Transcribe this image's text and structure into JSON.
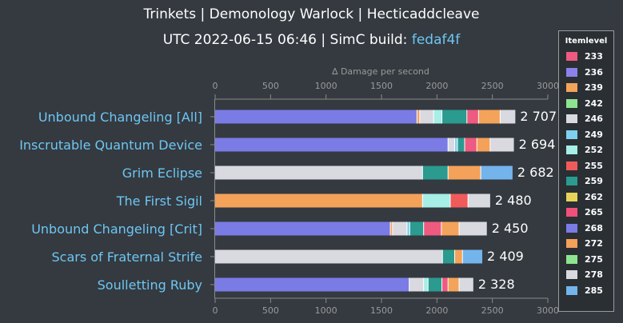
{
  "header": {
    "title": "Trinkets | Demonology Warlock | Hecticaddcleave",
    "subtitle_prefix": "UTC 2022-06-15 06:46 | SimC build: ",
    "build": "fedaf4f"
  },
  "chart_data": {
    "type": "bar",
    "orientation": "horizontal",
    "stacked": true,
    "xlabel": "∆ Damage per second",
    "xlim": [
      0,
      3000
    ],
    "xticks": [
      0,
      500,
      1000,
      1500,
      2000,
      2500,
      3000
    ],
    "grid": false,
    "legend_position": "right",
    "legend_title": "Itemlevel",
    "series_colors": {
      "233": "#ee5a80",
      "236": "#8a82e8",
      "239": "#f4a35a",
      "242": "#8ee58f",
      "246": "#d9d9e0",
      "249": "#7fd0f0",
      "252": "#a6eee6",
      "255": "#ef5b5b",
      "259": "#2b9a8f",
      "262": "#e8d35a",
      "265": "#f0507a",
      "268": "#7b7be6",
      "272": "#f4a15a",
      "275": "#8ee58f",
      "278": "#d9d9df",
      "285": "#74b4ec"
    },
    "categories": [
      "Unbound Changeling [All]",
      "Inscrutable Quantum Device",
      "Grim Eclipse",
      "The First Sigil",
      "Unbound Changeling [Crit]",
      "Scars of Fraternal Strife",
      "Soulletting Ruby"
    ],
    "totals": [
      "2 707",
      "2 694",
      "2 682",
      "2 480",
      "2 450",
      "2 409",
      "2 328"
    ],
    "bars": [
      [
        [
          "268",
          1820
        ],
        [
          "272",
          1845
        ],
        [
          "278",
          1970
        ],
        [
          "252",
          2045
        ],
        [
          "259",
          2270
        ],
        [
          "233",
          2375
        ],
        [
          "239",
          2570
        ],
        [
          "246",
          2707
        ]
      ],
      [
        [
          "268",
          2100
        ],
        [
          "246",
          2160
        ],
        [
          "249",
          2185
        ],
        [
          "259",
          2250
        ],
        [
          "233",
          2360
        ],
        [
          "272",
          2480
        ],
        [
          "278",
          2694
        ]
      ],
      [
        [
          "246",
          1870
        ],
        [
          "259",
          2100
        ],
        [
          "272",
          2395
        ],
        [
          "285",
          2682
        ]
      ],
      [
        [
          "272",
          1870
        ],
        [
          "252",
          2120
        ],
        [
          "255",
          2280
        ],
        [
          "246",
          2480
        ]
      ],
      [
        [
          "268",
          1580
        ],
        [
          "272",
          1600
        ],
        [
          "278",
          1730
        ],
        [
          "249",
          1755
        ],
        [
          "259",
          1880
        ],
        [
          "233",
          2040
        ],
        [
          "239",
          2200
        ],
        [
          "246",
          2450
        ]
      ],
      [
        [
          "246",
          2050
        ],
        [
          "259",
          2160
        ],
        [
          "272",
          2230
        ],
        [
          "285",
          2409
        ]
      ],
      [
        [
          "268",
          1750
        ],
        [
          "246",
          1880
        ],
        [
          "252",
          1920
        ],
        [
          "259",
          2045
        ],
        [
          "233",
          2100
        ],
        [
          "239",
          2200
        ],
        [
          "246",
          2328
        ]
      ]
    ]
  }
}
